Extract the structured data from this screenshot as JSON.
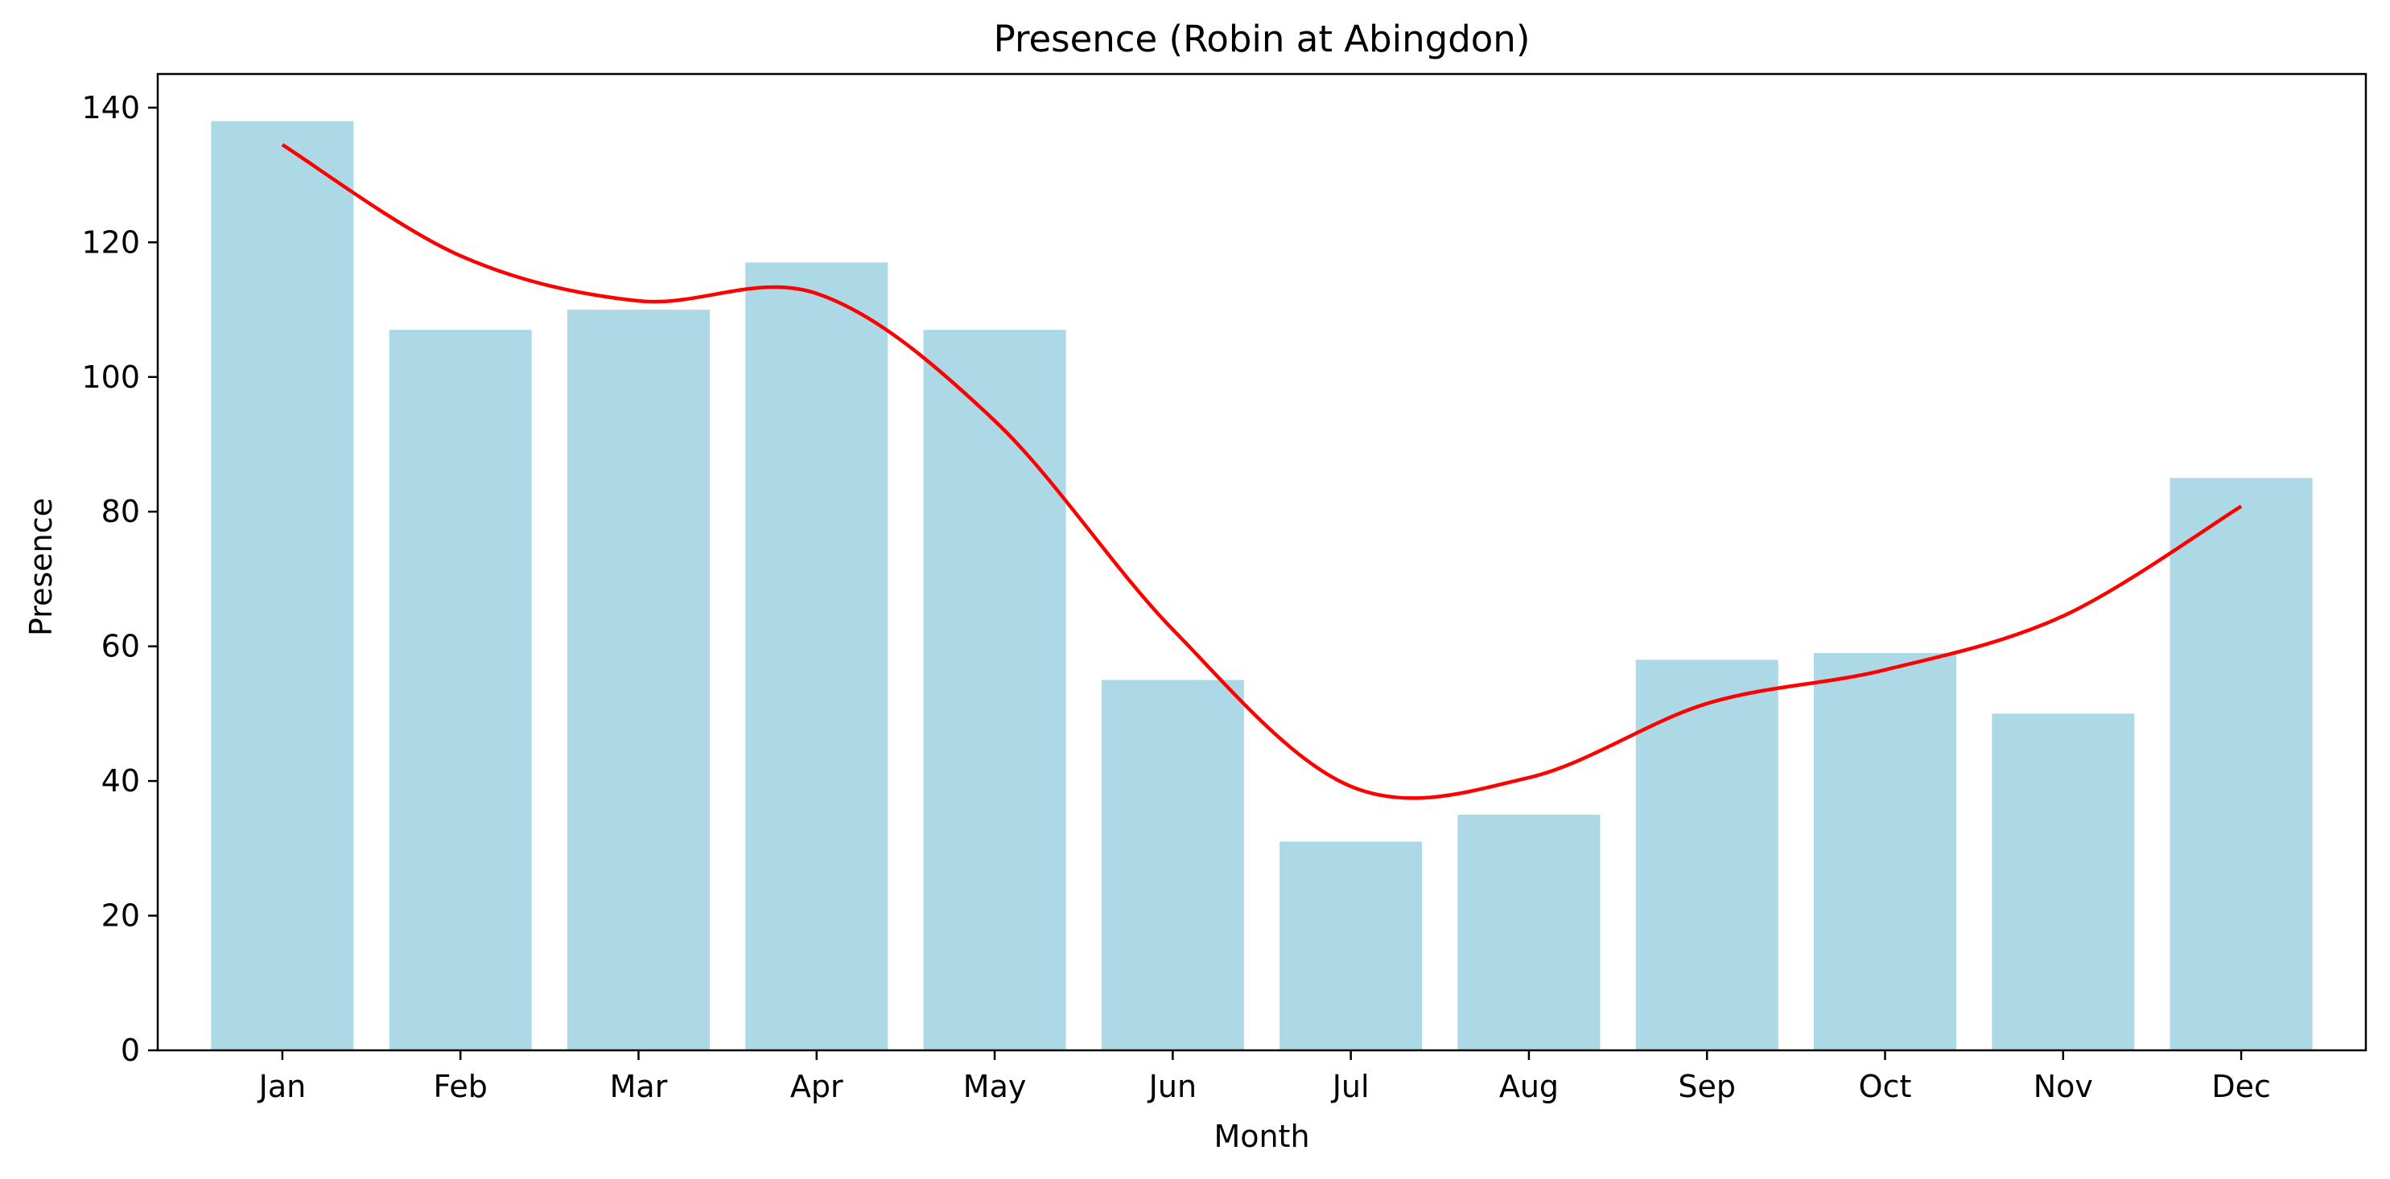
{
  "chart_data": {
    "type": "bar",
    "title": "Presence (Robin at Abingdon)",
    "xlabel": "Month",
    "ylabel": "Presence",
    "categories": [
      "Jan",
      "Feb",
      "Mar",
      "Apr",
      "May",
      "Jun",
      "Jul",
      "Aug",
      "Sep",
      "Oct",
      "Nov",
      "Dec"
    ],
    "series": [
      {
        "type": "bar",
        "values": [
          138,
          107,
          110,
          117,
          107,
          55,
          31,
          35,
          58,
          59,
          50,
          85
        ],
        "color": "#add8e6"
      },
      {
        "type": "line",
        "values": [
          134.5,
          118,
          111.3,
          112.4,
          93.5,
          62.5,
          39.2,
          40.5,
          51.5,
          56.5,
          64.5,
          80.8
        ],
        "color": "#ff0000",
        "smooth": true
      }
    ],
    "ylim": [
      0,
      145
    ],
    "yticks": [
      0,
      20,
      40,
      60,
      80,
      100,
      120,
      140
    ],
    "grid": false,
    "legend": "none"
  }
}
